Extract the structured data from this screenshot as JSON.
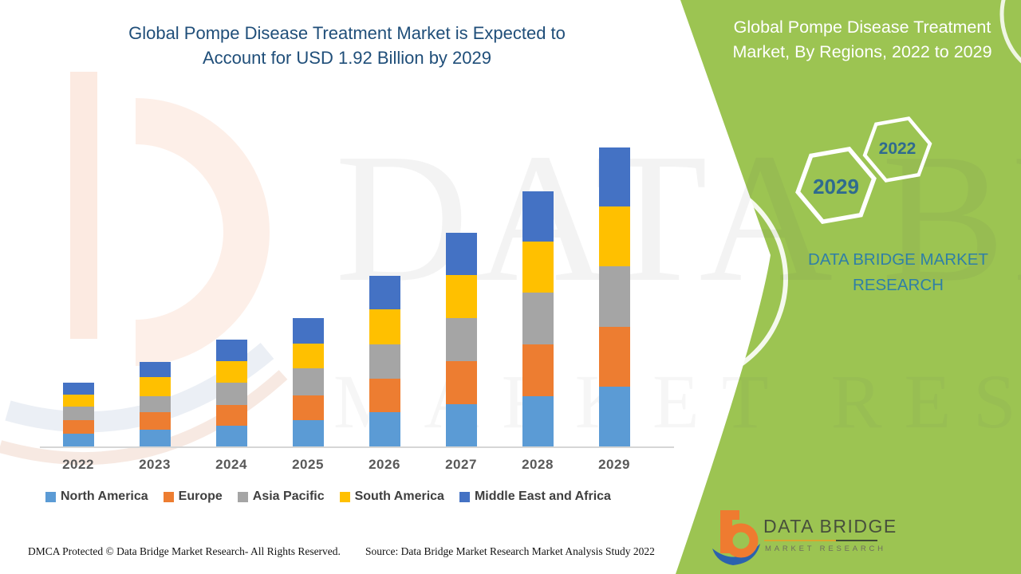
{
  "colors": {
    "panel_green": "#9CC452",
    "title_blue": "#1F4E79",
    "teal_text": "#2F7FA6",
    "hex_year_text": "#2F6B8F",
    "axis_label_gray": "#595959",
    "logo_orange": "#EF7B30",
    "logo_blue": "#2B62AE",
    "watermark_peach": "#FAD8C8"
  },
  "header": {
    "title_line1": "Global Pompe Disease Treatment Market is Expected to",
    "title_line2": "Account for USD 1.92 Billion by 2029"
  },
  "side_panel": {
    "heading_line1": "Global Pompe Disease Treatment",
    "heading_line2": "Market, By Regions, 2022 to 2029",
    "hexagons": [
      {
        "label": "2029"
      },
      {
        "label": "2022"
      }
    ],
    "brand_text": "DATA BRIDGE MARKET RESEARCH"
  },
  "watermark": {
    "line1": "DATA BRIDGE",
    "line2": "MARKET RESEARCH"
  },
  "chart_data": {
    "type": "bar",
    "stacked": true,
    "title": "Global Pompe Disease Treatment Market is Expected to Account for USD 1.92 Billion by 2029",
    "unit": "USD Billion",
    "categories": [
      "2022",
      "2023",
      "2024",
      "2025",
      "2026",
      "2027",
      "2028",
      "2029"
    ],
    "series": [
      {
        "name": "North America",
        "color": "#5B9BD5",
        "values": [
          0.082,
          0.107,
          0.133,
          0.172,
          0.223,
          0.273,
          0.324,
          0.387
        ]
      },
      {
        "name": "Europe",
        "color": "#ED7D31",
        "values": [
          0.089,
          0.114,
          0.136,
          0.157,
          0.212,
          0.278,
          0.333,
          0.381
        ]
      },
      {
        "name": "Asia Pacific",
        "color": "#A5A5A5",
        "values": [
          0.085,
          0.102,
          0.14,
          0.174,
          0.223,
          0.276,
          0.333,
          0.389
        ]
      },
      {
        "name": "South America",
        "color": "#FFC000",
        "values": [
          0.077,
          0.124,
          0.141,
          0.159,
          0.224,
          0.275,
          0.331,
          0.385
        ]
      },
      {
        "name": "Middle East and Africa",
        "color": "#4472C4",
        "values": [
          0.077,
          0.099,
          0.137,
          0.162,
          0.218,
          0.271,
          0.322,
          0.379
        ]
      }
    ],
    "totals_by_year": [
      0.41,
      0.55,
      0.69,
      0.82,
      1.1,
      1.37,
      1.64,
      1.92
    ],
    "ylim": [
      0,
      2.0
    ],
    "gridlines": false,
    "y_axis_shown": false,
    "legend_position": "bottom"
  },
  "footer": {
    "left": "DMCA Protected © Data Bridge Market Research- All Rights Reserved.",
    "right": "Source: Data Bridge Market Research Market Analysis Study 2022"
  },
  "logo": {
    "wordmark": "DATA BRIDGE",
    "subtitle": "MARKET RESEARCH"
  }
}
